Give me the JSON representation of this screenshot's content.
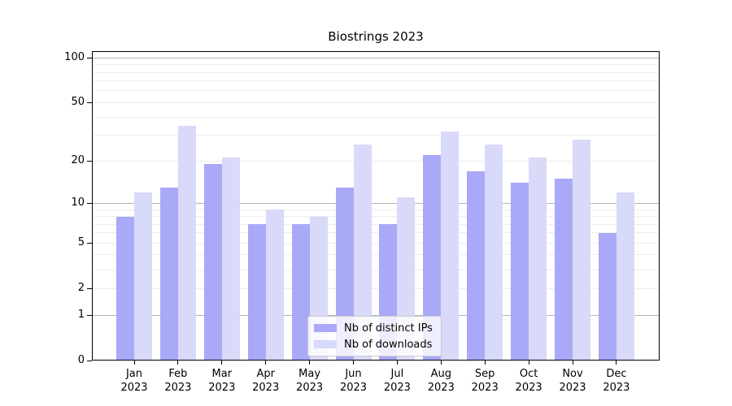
{
  "chart_data": {
    "type": "bar",
    "title": "Biostrings 2023",
    "categories": [
      "Jan",
      "Feb",
      "Mar",
      "Apr",
      "May",
      "Jun",
      "Jul",
      "Aug",
      "Sep",
      "Oct",
      "Nov",
      "Dec"
    ],
    "x_year_label": "2023",
    "series": [
      {
        "name": "Nb of distinct IPs",
        "color": "#a9a9f8",
        "values": [
          8,
          13,
          19,
          7,
          7,
          13,
          7,
          22,
          17,
          14,
          15,
          6
        ]
      },
      {
        "name": "Nb of downloads",
        "color": "#d9d9fa",
        "values": [
          12,
          35,
          21,
          9,
          8,
          26,
          11,
          32,
          26,
          21,
          28,
          12
        ]
      }
    ],
    "y_axis": {
      "scale": "log1p",
      "tick_values": [
        0,
        1,
        2,
        5,
        10,
        20,
        50,
        100
      ],
      "tick_labels": [
        "0",
        "1",
        "2",
        "5",
        "10",
        "20",
        "50",
        "100"
      ],
      "major_gridlines": [
        1,
        10,
        100
      ],
      "minor_gridlines": [
        2,
        3,
        4,
        5,
        6,
        7,
        8,
        9,
        20,
        30,
        40,
        50,
        60,
        70,
        80,
        90
      ],
      "ylim": [
        0,
        111
      ]
    },
    "grid": true,
    "legend_position": "lower-center-inside",
    "colors": {
      "major_grid": "#b4b4b4",
      "minor_grid": "#ededed",
      "spine": "#000000",
      "background": "#ffffff"
    }
  }
}
